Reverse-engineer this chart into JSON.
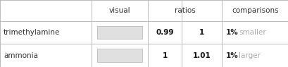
{
  "rows": [
    {
      "name": "trimethylamine",
      "ratio_left": "0.99",
      "ratio_right": "1",
      "pct": "1%",
      "comparison": "smaller"
    },
    {
      "name": "ammonia",
      "ratio_left": "1",
      "ratio_right": "1.01",
      "pct": "1%",
      "comparison": "larger"
    }
  ],
  "bar_color": "#e0e0e0",
  "bar_edge_color": "#b0b0b0",
  "header_color": "#333333",
  "name_color": "#333333",
  "ratio_color": "#111111",
  "pct_color": "#222222",
  "comparison_color": "#aaaaaa",
  "grid_color": "#bbbbbb",
  "bg_color": "#ffffff",
  "font_size": 7.5
}
